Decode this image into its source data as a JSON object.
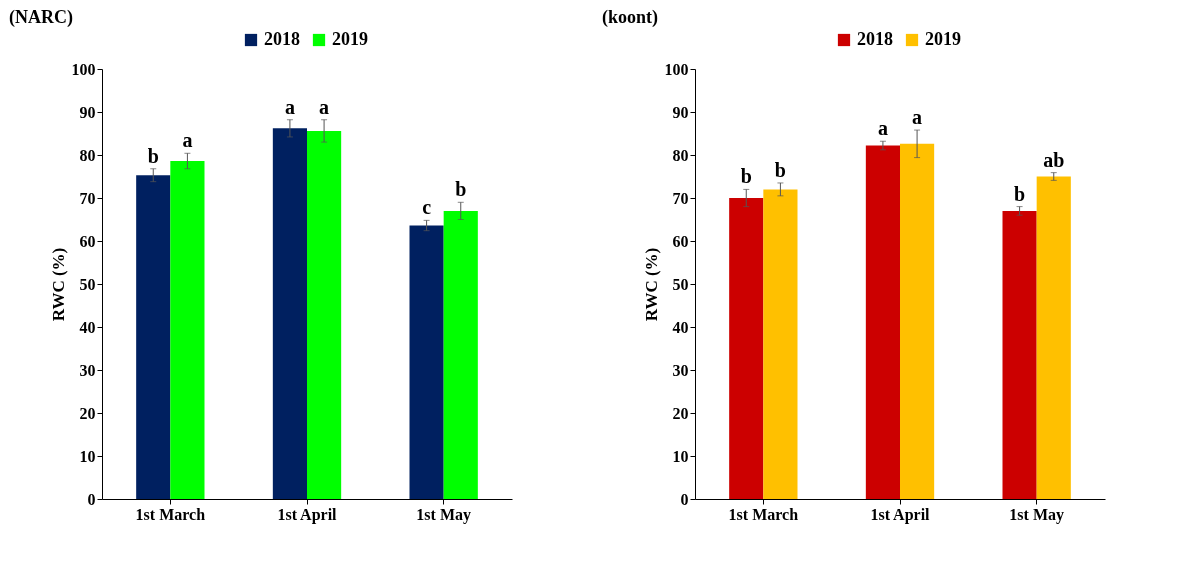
{
  "chart_data": [
    {
      "type": "bar",
      "title": "(NARC)",
      "ylabel": "RWC (%)",
      "categories": [
        "1st March",
        "1st April",
        "1st May"
      ],
      "ylim": [
        0,
        100
      ],
      "yticks": [
        0,
        10,
        20,
        30,
        40,
        50,
        60,
        70,
        80,
        90,
        100
      ],
      "grid": false,
      "legend": "top",
      "series": [
        {
          "name": "2018",
          "color": "#002060",
          "values": [
            75.3,
            86.2,
            63.6
          ],
          "errors": [
            1.5,
            2.0,
            1.2
          ],
          "value_labels": [
            "b",
            "a",
            "c"
          ]
        },
        {
          "name": "2019",
          "color": "#00ff00",
          "values": [
            78.6,
            85.6,
            67.0
          ],
          "errors": [
            1.8,
            2.6,
            2.0
          ],
          "value_labels": [
            "a",
            "a",
            "b"
          ]
        }
      ]
    },
    {
      "type": "bar",
      "title": "(koont)",
      "ylabel": "RWC (%)",
      "categories": [
        "1st March",
        "1st April",
        "1st May"
      ],
      "ylim": [
        0,
        100
      ],
      "yticks": [
        0,
        10,
        20,
        30,
        40,
        50,
        60,
        70,
        80,
        90,
        100
      ],
      "grid": false,
      "legend": "top",
      "series": [
        {
          "name": "2018",
          "color": "#cc0000",
          "values": [
            70.0,
            82.2,
            67.0
          ],
          "errors": [
            2.0,
            1.0,
            1.0
          ],
          "value_labels": [
            "b",
            "a",
            "b"
          ]
        },
        {
          "name": "2019",
          "color": "#ffc000",
          "values": [
            72.0,
            82.6,
            75.0
          ],
          "errors": [
            1.5,
            3.2,
            0.9
          ],
          "value_labels": [
            "b",
            "a",
            "ab"
          ]
        }
      ]
    }
  ]
}
